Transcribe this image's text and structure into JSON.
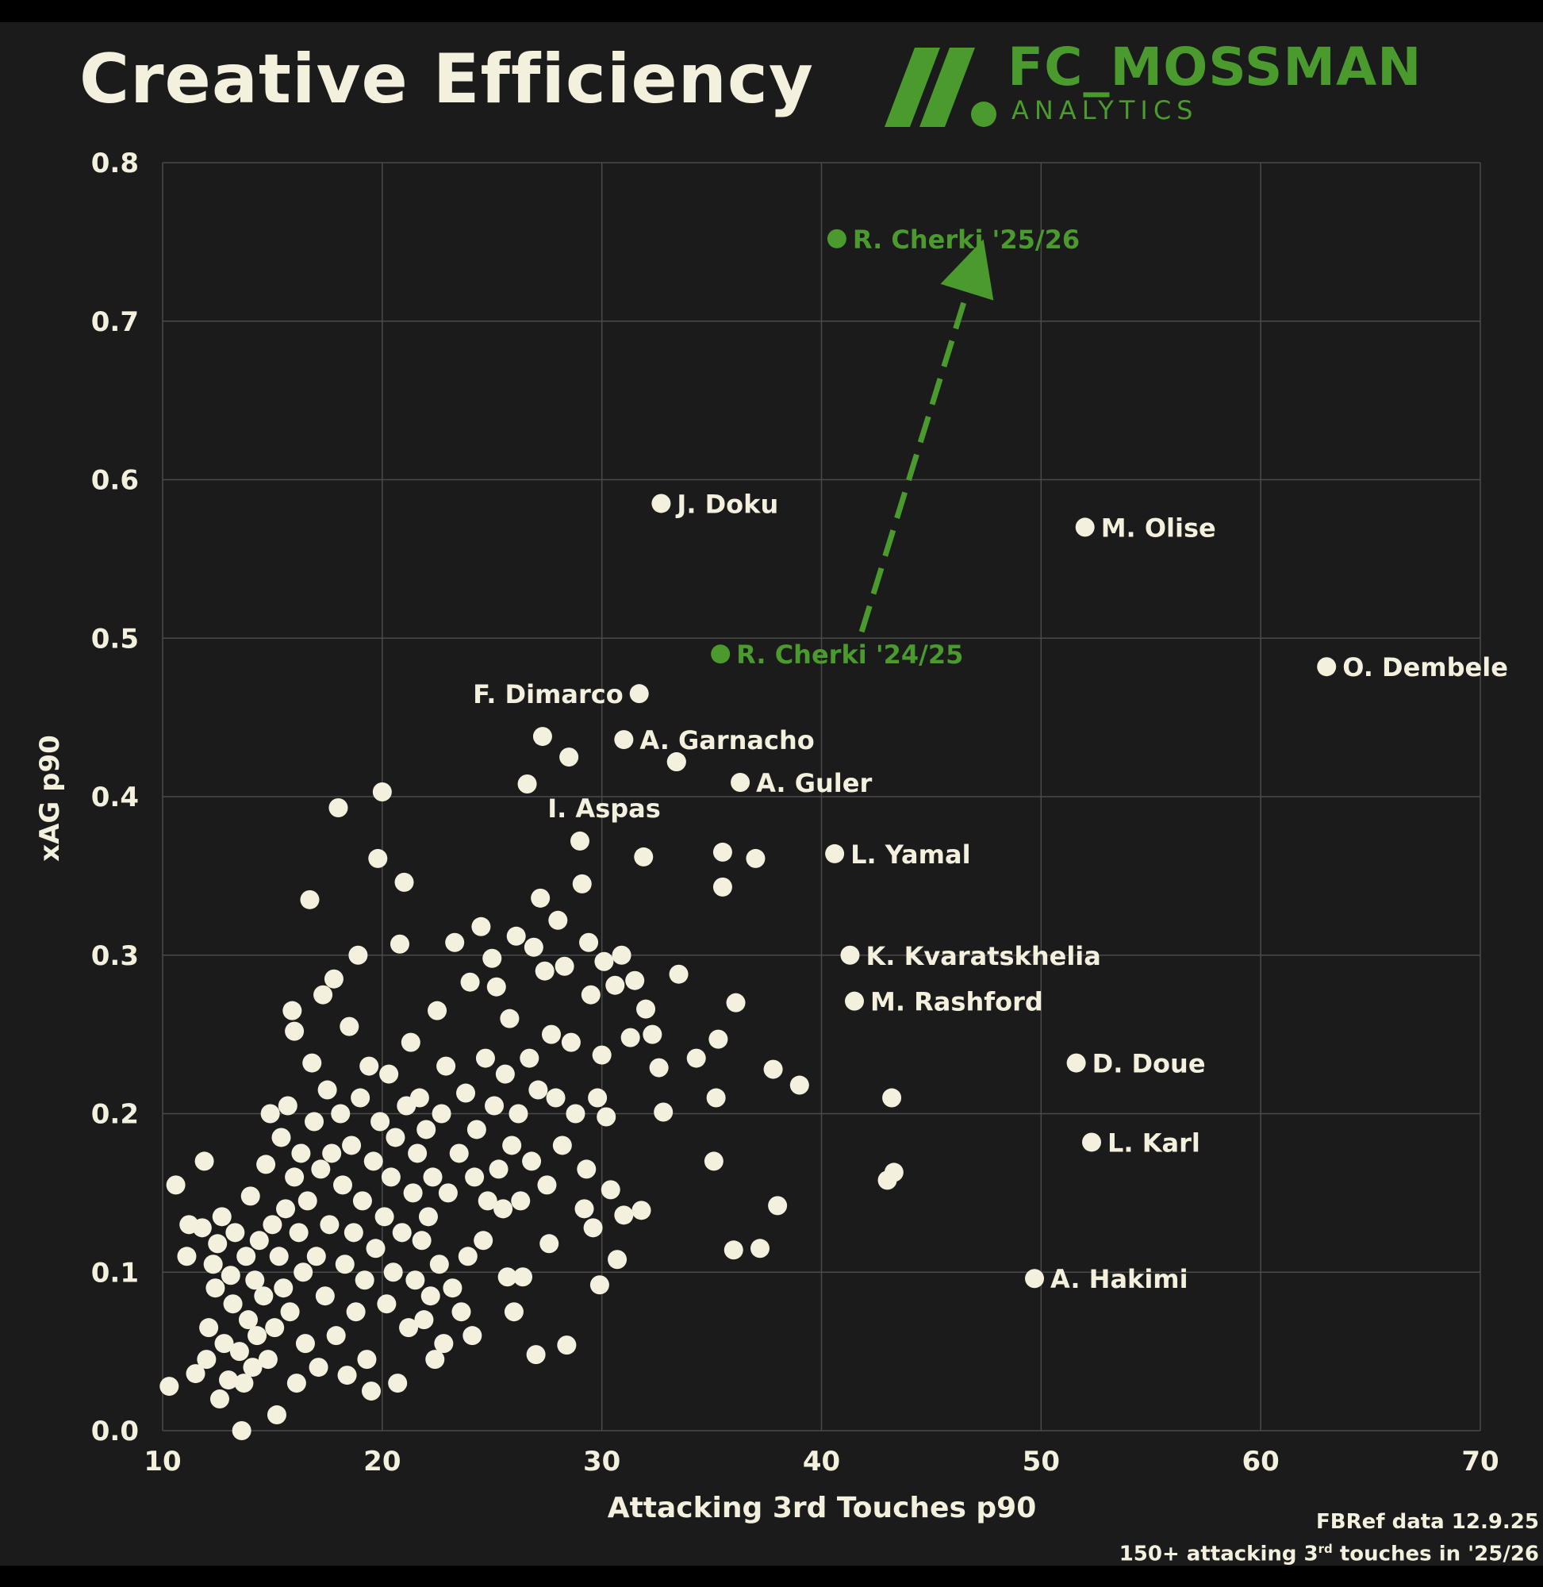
{
  "title": "Creative Efficiency",
  "brand": {
    "name": "FC_MOSSMAN",
    "subtitle": "ANALYTICS",
    "color": "#4a9a2e"
  },
  "footer": {
    "source": "FBRef data 12.9.25",
    "note_prefix": "150+ attacking 3",
    "note_sup": "rd",
    "note_suffix": " touches in '25/26"
  },
  "colors": {
    "background": "#1b1b1b",
    "point": "#f4f0de",
    "grid": "#4a4a4a",
    "highlight": "#4a9a2e"
  },
  "chart_data": {
    "type": "scatter",
    "title": "Creative Efficiency",
    "xlabel": "Attacking 3rd Touches p90",
    "ylabel": "xAG p90",
    "xlim": [
      10,
      70
    ],
    "ylim": [
      0.0,
      0.8
    ],
    "xticks": [
      10,
      20,
      30,
      40,
      50,
      60,
      70
    ],
    "yticks": [
      0.0,
      0.1,
      0.2,
      0.3,
      0.4,
      0.5,
      0.6,
      0.7,
      0.8
    ],
    "grid": true,
    "labeled_points": [
      {
        "name": "J. Doku",
        "x": 32.7,
        "y": 0.585
      },
      {
        "name": "M. Olise",
        "x": 52.0,
        "y": 0.57
      },
      {
        "name": "O. Dembele",
        "x": 63.0,
        "y": 0.482
      },
      {
        "name": "F. Dimarco",
        "x": 31.7,
        "y": 0.465,
        "label_side": "left"
      },
      {
        "name": "A. Garnacho",
        "x": 31.0,
        "y": 0.436
      },
      {
        "name": "I. Aspas",
        "x": 33.4,
        "y": 0.422,
        "label_below_left": true
      },
      {
        "name": "A. Guler",
        "x": 36.3,
        "y": 0.409
      },
      {
        "name": "L. Yamal",
        "x": 40.6,
        "y": 0.364
      },
      {
        "name": "K. Kvaratskhelia",
        "x": 41.3,
        "y": 0.3
      },
      {
        "name": "M. Rashford",
        "x": 41.5,
        "y": 0.271
      },
      {
        "name": "D. Doue",
        "x": 51.6,
        "y": 0.232
      },
      {
        "name": "L. Karl",
        "x": 52.3,
        "y": 0.182
      },
      {
        "name": "A. Hakimi",
        "x": 49.7,
        "y": 0.096
      }
    ],
    "highlight": {
      "from": {
        "name": "R. Cherki '24/25",
        "x": 35.4,
        "y": 0.49
      },
      "to": {
        "name": "R. Cherki '25/26",
        "x": 40.7,
        "y": 0.752
      },
      "arrow_to": {
        "x": 47.0,
        "y": 0.735
      }
    },
    "points": [
      [
        10.3,
        0.028
      ],
      [
        10.6,
        0.155
      ],
      [
        11.1,
        0.11
      ],
      [
        11.2,
        0.13
      ],
      [
        11.5,
        0.036
      ],
      [
        11.8,
        0.128
      ],
      [
        11.9,
        0.17
      ],
      [
        12.0,
        0.045
      ],
      [
        12.1,
        0.065
      ],
      [
        12.3,
        0.105
      ],
      [
        12.4,
        0.09
      ],
      [
        12.5,
        0.118
      ],
      [
        12.6,
        0.02
      ],
      [
        12.7,
        0.135
      ],
      [
        12.8,
        0.055
      ],
      [
        13.0,
        0.032
      ],
      [
        13.1,
        0.098
      ],
      [
        13.2,
        0.08
      ],
      [
        13.3,
        0.125
      ],
      [
        13.5,
        0.05
      ],
      [
        13.6,
        0.0
      ],
      [
        13.7,
        0.03
      ],
      [
        13.8,
        0.11
      ],
      [
        13.9,
        0.07
      ],
      [
        14.0,
        0.148
      ],
      [
        14.1,
        0.04
      ],
      [
        14.2,
        0.095
      ],
      [
        14.3,
        0.06
      ],
      [
        14.4,
        0.12
      ],
      [
        14.6,
        0.085
      ],
      [
        14.7,
        0.168
      ],
      [
        14.8,
        0.045
      ],
      [
        14.9,
        0.2
      ],
      [
        15.0,
        0.13
      ],
      [
        15.1,
        0.065
      ],
      [
        15.2,
        0.01
      ],
      [
        15.3,
        0.11
      ],
      [
        15.4,
        0.185
      ],
      [
        15.5,
        0.09
      ],
      [
        15.6,
        0.14
      ],
      [
        15.7,
        0.205
      ],
      [
        15.8,
        0.075
      ],
      [
        15.9,
        0.265
      ],
      [
        16.0,
        0.16
      ],
      [
        16.0,
        0.252
      ],
      [
        16.1,
        0.03
      ],
      [
        16.2,
        0.125
      ],
      [
        16.3,
        0.175
      ],
      [
        16.4,
        0.1
      ],
      [
        16.5,
        0.055
      ],
      [
        16.6,
        0.145
      ],
      [
        16.7,
        0.335
      ],
      [
        16.8,
        0.232
      ],
      [
        16.9,
        0.195
      ],
      [
        17.0,
        0.11
      ],
      [
        17.1,
        0.04
      ],
      [
        17.2,
        0.165
      ],
      [
        17.3,
        0.275
      ],
      [
        17.4,
        0.085
      ],
      [
        17.5,
        0.215
      ],
      [
        17.6,
        0.13
      ],
      [
        17.7,
        0.175
      ],
      [
        17.8,
        0.285
      ],
      [
        17.9,
        0.06
      ],
      [
        18.0,
        0.393
      ],
      [
        18.1,
        0.2
      ],
      [
        18.2,
        0.155
      ],
      [
        18.3,
        0.105
      ],
      [
        18.4,
        0.035
      ],
      [
        18.5,
        0.255
      ],
      [
        18.6,
        0.18
      ],
      [
        18.7,
        0.125
      ],
      [
        18.8,
        0.075
      ],
      [
        18.9,
        0.3
      ],
      [
        19.0,
        0.21
      ],
      [
        19.1,
        0.145
      ],
      [
        19.2,
        0.095
      ],
      [
        19.3,
        0.045
      ],
      [
        19.4,
        0.23
      ],
      [
        19.5,
        0.025
      ],
      [
        19.6,
        0.17
      ],
      [
        19.7,
        0.115
      ],
      [
        19.8,
        0.361
      ],
      [
        19.9,
        0.195
      ],
      [
        20.0,
        0.403
      ],
      [
        20.1,
        0.135
      ],
      [
        20.2,
        0.08
      ],
      [
        20.3,
        0.225
      ],
      [
        20.4,
        0.16
      ],
      [
        20.5,
        0.1
      ],
      [
        20.6,
        0.185
      ],
      [
        20.7,
        0.03
      ],
      [
        20.8,
        0.307
      ],
      [
        20.9,
        0.125
      ],
      [
        21.0,
        0.346
      ],
      [
        21.1,
        0.205
      ],
      [
        21.2,
        0.065
      ],
      [
        21.3,
        0.245
      ],
      [
        21.4,
        0.15
      ],
      [
        21.5,
        0.095
      ],
      [
        21.6,
        0.175
      ],
      [
        21.7,
        0.21
      ],
      [
        21.8,
        0.12
      ],
      [
        21.9,
        0.07
      ],
      [
        22.0,
        0.19
      ],
      [
        22.1,
        0.135
      ],
      [
        22.2,
        0.085
      ],
      [
        22.3,
        0.16
      ],
      [
        22.4,
        0.045
      ],
      [
        22.5,
        0.265
      ],
      [
        22.6,
        0.105
      ],
      [
        22.7,
        0.2
      ],
      [
        22.8,
        0.055
      ],
      [
        22.9,
        0.23
      ],
      [
        23.0,
        0.15
      ],
      [
        23.2,
        0.09
      ],
      [
        23.3,
        0.308
      ],
      [
        23.5,
        0.175
      ],
      [
        23.6,
        0.075
      ],
      [
        23.8,
        0.213
      ],
      [
        23.9,
        0.11
      ],
      [
        24.0,
        0.283
      ],
      [
        24.1,
        0.06
      ],
      [
        24.2,
        0.16
      ],
      [
        24.3,
        0.19
      ],
      [
        24.5,
        0.318
      ],
      [
        24.6,
        0.12
      ],
      [
        24.7,
        0.235
      ],
      [
        24.8,
        0.145
      ],
      [
        25.0,
        0.298
      ],
      [
        25.1,
        0.205
      ],
      [
        25.2,
        0.28
      ],
      [
        25.3,
        0.165
      ],
      [
        25.5,
        0.14
      ],
      [
        25.6,
        0.225
      ],
      [
        25.7,
        0.097
      ],
      [
        25.8,
        0.26
      ],
      [
        25.9,
        0.18
      ],
      [
        26.0,
        0.075
      ],
      [
        26.1,
        0.312
      ],
      [
        26.2,
        0.2
      ],
      [
        26.3,
        0.145
      ],
      [
        26.4,
        0.097
      ],
      [
        26.6,
        0.408
      ],
      [
        26.7,
        0.235
      ],
      [
        26.8,
        0.17
      ],
      [
        26.9,
        0.305
      ],
      [
        27.0,
        0.048
      ],
      [
        27.1,
        0.215
      ],
      [
        27.2,
        0.336
      ],
      [
        27.3,
        0.438
      ],
      [
        27.4,
        0.29
      ],
      [
        27.5,
        0.155
      ],
      [
        27.6,
        0.118
      ],
      [
        27.7,
        0.25
      ],
      [
        27.9,
        0.21
      ],
      [
        28.0,
        0.322
      ],
      [
        28.2,
        0.18
      ],
      [
        28.3,
        0.293
      ],
      [
        28.4,
        0.054
      ],
      [
        28.5,
        0.425
      ],
      [
        28.6,
        0.245
      ],
      [
        28.8,
        0.2
      ],
      [
        29.0,
        0.372
      ],
      [
        29.1,
        0.345
      ],
      [
        29.2,
        0.14
      ],
      [
        29.3,
        0.165
      ],
      [
        29.4,
        0.308
      ],
      [
        29.5,
        0.275
      ],
      [
        29.6,
        0.128
      ],
      [
        29.8,
        0.21
      ],
      [
        29.9,
        0.092
      ],
      [
        30.0,
        0.237
      ],
      [
        30.1,
        0.296
      ],
      [
        30.2,
        0.198
      ],
      [
        30.4,
        0.152
      ],
      [
        30.6,
        0.281
      ],
      [
        30.7,
        0.108
      ],
      [
        30.9,
        0.3
      ],
      [
        31.0,
        0.136
      ],
      [
        31.3,
        0.248
      ],
      [
        31.5,
        0.284
      ],
      [
        31.8,
        0.139
      ],
      [
        31.9,
        0.362
      ],
      [
        32.0,
        0.266
      ],
      [
        32.3,
        0.25
      ],
      [
        32.6,
        0.229
      ],
      [
        32.8,
        0.201
      ],
      [
        33.4,
        0.422
      ],
      [
        33.5,
        0.288
      ],
      [
        34.3,
        0.235
      ],
      [
        35.1,
        0.17
      ],
      [
        35.2,
        0.21
      ],
      [
        35.3,
        0.247
      ],
      [
        35.5,
        0.343
      ],
      [
        35.5,
        0.365
      ],
      [
        36.0,
        0.114
      ],
      [
        36.1,
        0.27
      ],
      [
        37.0,
        0.361
      ],
      [
        37.2,
        0.115
      ],
      [
        37.8,
        0.228
      ],
      [
        38.0,
        0.142
      ],
      [
        39.0,
        0.218
      ],
      [
        43.0,
        0.158
      ],
      [
        43.3,
        0.163
      ],
      [
        43.2,
        0.21
      ]
    ]
  }
}
